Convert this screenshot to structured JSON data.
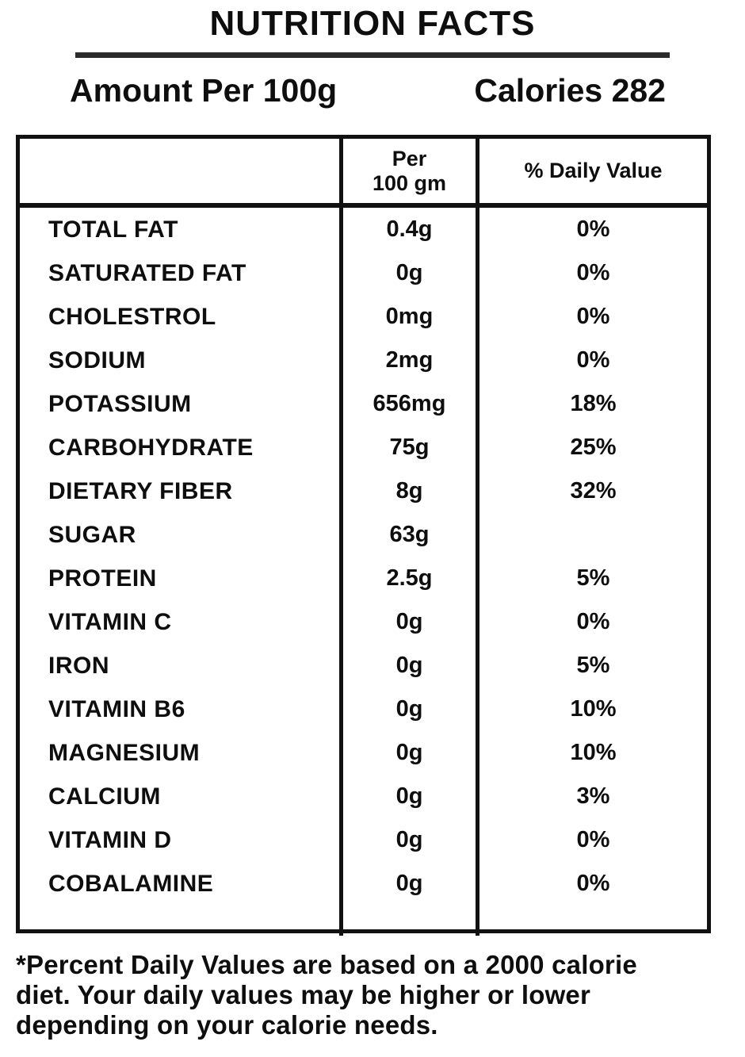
{
  "header": {
    "title": "NUTRITION FACTS",
    "amount_label": "Amount Per 100g",
    "calories_label": "Calories 282"
  },
  "table": {
    "columns": {
      "nutrient": "",
      "per_line1": "Per",
      "per_line2": "100 gm",
      "daily_value": "% Daily Value"
    },
    "rows": [
      {
        "label": "TOTAL FAT",
        "amount": "0.4g",
        "dv": "0%"
      },
      {
        "label": "SATURATED FAT",
        "amount": "0g",
        "dv": "0%"
      },
      {
        "label": "CHOLESTROL",
        "amount": "0mg",
        "dv": "0%"
      },
      {
        "label": "SODIUM",
        "amount": "2mg",
        "dv": "0%"
      },
      {
        "label": "POTASSIUM",
        "amount": "656mg",
        "dv": "18%"
      },
      {
        "label": "CARBOHYDRATE",
        "amount": "75g",
        "dv": "25%"
      },
      {
        "label": "DIETARY FIBER",
        "amount": "8g",
        "dv": "32%"
      },
      {
        "label": "SUGAR",
        "amount": "63g",
        "dv": ""
      },
      {
        "label": "PROTEIN",
        "amount": "2.5g",
        "dv": "5%"
      },
      {
        "label": "VITAMIN C",
        "amount": "0g",
        "dv": "0%"
      },
      {
        "label": "IRON",
        "amount": "0g",
        "dv": "5%"
      },
      {
        "label": "VITAMIN B6",
        "amount": "0g",
        "dv": "10%"
      },
      {
        "label": "MAGNESIUM",
        "amount": "0g",
        "dv": "10%"
      },
      {
        "label": "CALCIUM",
        "amount": "0g",
        "dv": "3%"
      },
      {
        "label": "VITAMIN D",
        "amount": "0g",
        "dv": "0%"
      },
      {
        "label": "COBALAMINE",
        "amount": "0g",
        "dv": "0%"
      }
    ]
  },
  "footnote": {
    "lines": [
      "*Percent Daily Values are based on a 2000 calorie",
      "diet. Your daily values may be higher or lower",
      "depending on your calorie needs."
    ]
  },
  "colors": {
    "text": "#0e0e0e",
    "border": "#111111",
    "background": "#ffffff"
  }
}
